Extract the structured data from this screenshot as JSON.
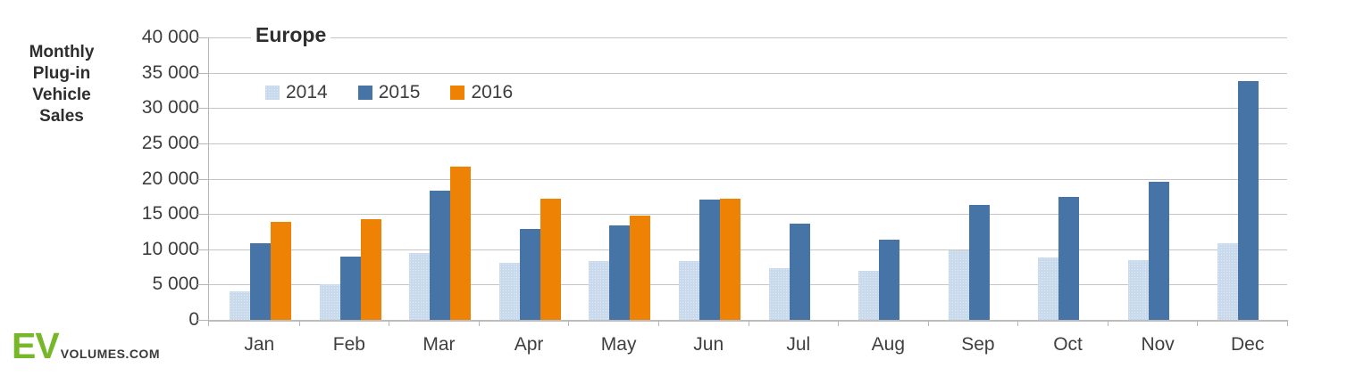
{
  "branding": {
    "logo_ev": "EV",
    "logo_suffix": "VOLUMES.COM",
    "logo_green": "#76b82a"
  },
  "chart": {
    "title": "Europe",
    "y_axis_title": "Monthly\nPlug-in\nVehicle\nSales"
  },
  "chart_data": {
    "type": "bar",
    "title": "Europe",
    "ylabel": "Monthly Plug-in Vehicle Sales",
    "xlabel": "",
    "categories": [
      "Jan",
      "Feb",
      "Mar",
      "Apr",
      "May",
      "Jun",
      "Jul",
      "Aug",
      "Sep",
      "Oct",
      "Nov",
      "Dec"
    ],
    "series": [
      {
        "name": "2014",
        "color": "#c9daed",
        "pattern": "dotted",
        "values": [
          4000,
          5100,
          9500,
          8100,
          8300,
          8300,
          7300,
          7000,
          9900,
          8800,
          8400,
          10800
        ]
      },
      {
        "name": "2015",
        "color": "#4674a6",
        "pattern": null,
        "values": [
          10800,
          8900,
          18300,
          12900,
          13400,
          17000,
          13600,
          11300,
          16300,
          17400,
          19500,
          33800
        ]
      },
      {
        "name": "2016",
        "color": "#ee8204",
        "pattern": null,
        "values": [
          13900,
          14200,
          21700,
          17100,
          14800,
          17200,
          null,
          null,
          null,
          null,
          null,
          null
        ]
      }
    ],
    "ylim": [
      0,
      40000
    ],
    "ytick_step": 5000,
    "ytick_labels": [
      "0",
      "5 000",
      "10 000",
      "15 000",
      "20 000",
      "25 000",
      "30 000",
      "35 000",
      "40 000"
    ],
    "grid": true,
    "legend_position": "top-left"
  }
}
